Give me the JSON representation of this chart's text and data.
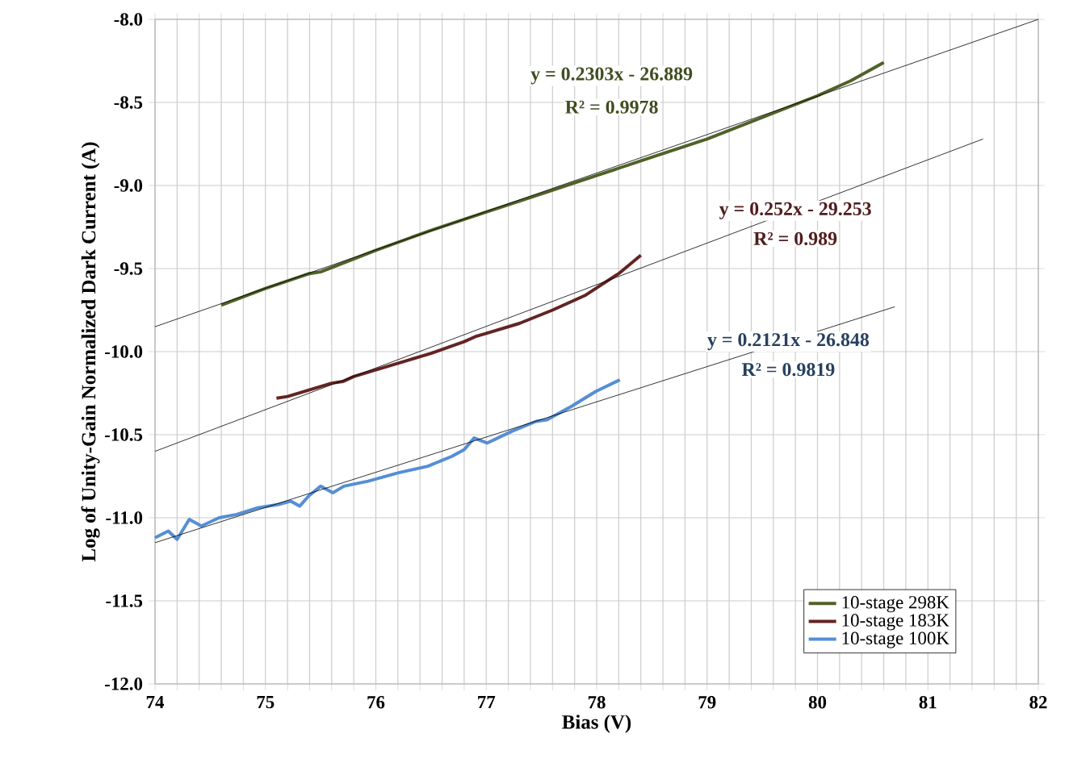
{
  "chart_data": {
    "type": "line",
    "xlabel": "Bias (V)",
    "ylabel": "Log of Unity-Gain  Normalized Dark Current (A)",
    "xlim": [
      74,
      82
    ],
    "ylim": [
      -12,
      -8
    ],
    "xticks": [
      74,
      {
        "value": 74.2,
        "label": null
      },
      {
        "value": 74.4,
        "label": null
      },
      {
        "value": 74.6,
        "label": null
      },
      {
        "value": 74.8,
        "label": null
      },
      75,
      {
        "value": 75.2,
        "label": null
      },
      {
        "value": 75.4,
        "label": null
      },
      {
        "value": 75.6,
        "label": null
      },
      {
        "value": 75.8,
        "label": null
      },
      76,
      {
        "value": 76.2,
        "label": null
      },
      {
        "value": 76.4,
        "label": null
      },
      {
        "value": 76.6,
        "label": null
      },
      {
        "value": 76.8,
        "label": null
      },
      77,
      {
        "value": 77.2,
        "label": null
      },
      {
        "value": 77.4,
        "label": null
      },
      {
        "value": 77.6,
        "label": null
      },
      {
        "value": 77.8,
        "label": null
      },
      78,
      {
        "value": 78.2,
        "label": null
      },
      {
        "value": 78.4,
        "label": null
      },
      {
        "value": 78.6,
        "label": null
      },
      {
        "value": 78.8,
        "label": null
      },
      79,
      {
        "value": 79.2,
        "label": null
      },
      {
        "value": 79.4,
        "label": null
      },
      {
        "value": 79.6,
        "label": null
      },
      {
        "value": 79.8,
        "label": null
      },
      80,
      {
        "value": 80.2,
        "label": null
      },
      {
        "value": 80.4,
        "label": null
      },
      {
        "value": 80.6,
        "label": null
      },
      {
        "value": 80.8,
        "label": null
      },
      81,
      {
        "value": 81.2,
        "label": null
      },
      {
        "value": 81.4,
        "label": null
      },
      {
        "value": 81.6,
        "label": null
      },
      {
        "value": 81.8,
        "label": null
      },
      82
    ],
    "yticks": [
      {
        "value": -12,
        "label": "-12.0"
      },
      {
        "value": -11.5,
        "label": "-11.5"
      },
      {
        "value": -11,
        "label": "-11.0"
      },
      {
        "value": -10.5,
        "label": "-10.5"
      },
      {
        "value": -10,
        "label": "-10.0"
      },
      {
        "value": -9.5,
        "label": "-9.5"
      },
      {
        "value": -9,
        "label": "-9.0"
      },
      {
        "value": -8.5,
        "label": "-8.5"
      },
      {
        "value": -8,
        "label": "-8.0"
      }
    ],
    "grid": true,
    "legend": "bottom right",
    "marker": "none",
    "line_style": "solid",
    "series": [
      {
        "name": "10-stage 298K",
        "color": "#4f6228",
        "x": [
          74.6,
          75.0,
          75.4,
          75.5,
          76.0,
          76.5,
          77.0,
          77.5,
          78.0,
          78.5,
          79.0,
          79.5,
          80.0,
          80.3,
          80.6
        ],
        "values": [
          -9.72,
          -9.62,
          -9.53,
          -9.52,
          -9.39,
          -9.27,
          -9.16,
          -9.05,
          -8.94,
          -8.83,
          -8.72,
          -8.59,
          -8.46,
          -8.37,
          -8.26
        ]
      },
      {
        "name": "10-stage 183K",
        "color": "#632423",
        "x": [
          75.1,
          75.2,
          75.4,
          75.6,
          75.7,
          75.8,
          76.0,
          76.3,
          76.5,
          76.8,
          76.9,
          77.0,
          77.3,
          77.6,
          77.9,
          78.2,
          78.4
        ],
        "values": [
          -10.28,
          -10.27,
          -10.23,
          -10.19,
          -10.18,
          -10.15,
          -10.11,
          -10.05,
          -10.01,
          -9.94,
          -9.91,
          -9.89,
          -9.83,
          -9.75,
          -9.66,
          -9.53,
          -9.42
        ]
      },
      {
        "name": "10-stage 100K",
        "color": "#558ed5",
        "x": [
          74.0,
          74.12,
          74.2,
          74.31,
          74.42,
          74.58,
          74.74,
          74.93,
          75.12,
          75.23,
          75.31,
          75.39,
          75.5,
          75.61,
          75.71,
          75.93,
          76.2,
          76.47,
          76.69,
          76.8,
          76.89,
          77.01,
          77.23,
          77.45,
          77.55,
          77.77,
          77.99,
          78.21
        ],
        "values": [
          -11.12,
          -11.08,
          -11.13,
          -11.01,
          -11.05,
          -11.0,
          -10.98,
          -10.94,
          -10.92,
          -10.9,
          -10.93,
          -10.87,
          -10.81,
          -10.85,
          -10.81,
          -10.78,
          -10.73,
          -10.69,
          -10.63,
          -10.59,
          -10.52,
          -10.55,
          -10.48,
          -10.42,
          -10.41,
          -10.33,
          -10.24,
          -10.17
        ]
      },
      {
        "color": "#000000",
        "x": [
          74,
          82
        ],
        "values": [
          -9.85,
          -8.0
        ]
      },
      {
        "color": "#000000",
        "x": [
          74,
          81.5
        ],
        "values": [
          -10.6,
          -8.72
        ]
      },
      {
        "color": "#000000",
        "x": [
          74,
          80.7
        ],
        "values": [
          -11.15,
          -9.73
        ]
      }
    ],
    "annotations": [
      "y = 0.2303x - 26.889",
      "R² = 0.9978",
      "y = 0.252x - 29.253",
      "R² = 0.989",
      "y = 0.2121x - 26.848",
      "R² = 0.9819"
    ]
  }
}
